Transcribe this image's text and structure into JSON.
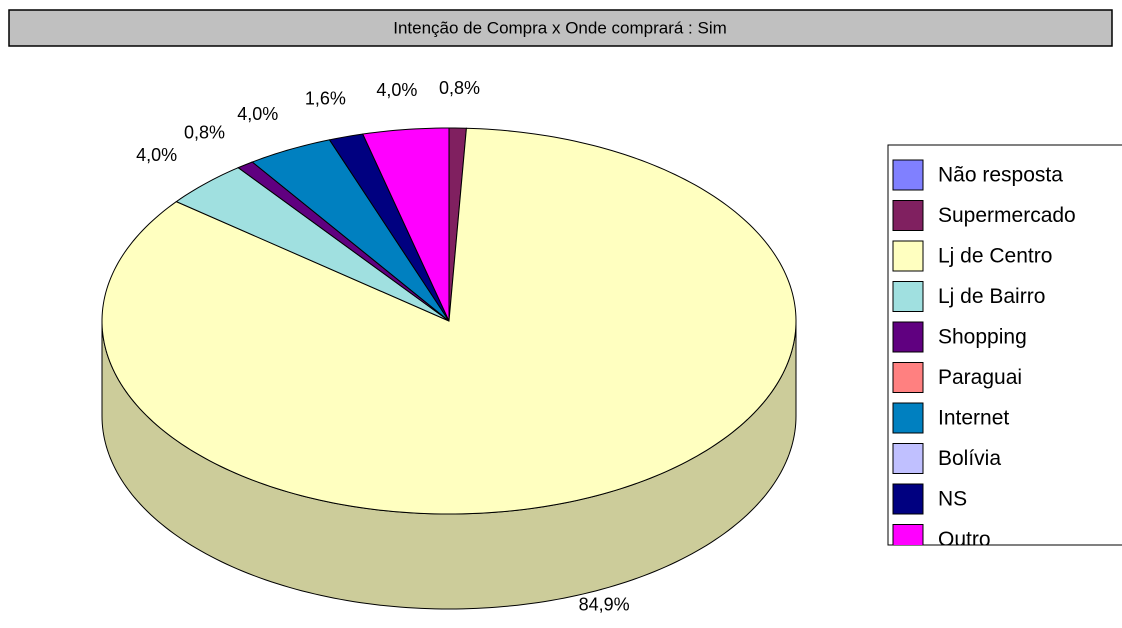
{
  "chart_data": {
    "type": "pie",
    "title": "Intenção de Compra x Onde comprará : Sim",
    "categories": [
      "Não resposta",
      "Supermercado",
      "Lj de Centro",
      "Lj de Bairro",
      "Shopping",
      "Paraguai",
      "Internet",
      "Bolívia",
      "NS",
      "Outro"
    ],
    "values": [
      0,
      0.8,
      84.9,
      4.0,
      0.8,
      0,
      4.0,
      0,
      1.6,
      4.0
    ],
    "value_labels": [
      null,
      "0,8%",
      "84,9%",
      "4,0%",
      "0,8%",
      null,
      "4,0%",
      null,
      "1,6%",
      "4,0%"
    ],
    "colors": [
      "#8080ff",
      "#802060",
      "#ffffc0",
      "#a0e0e0",
      "#600080",
      "#ff8080",
      "#0080c0",
      "#c0c0ff",
      "#000080",
      "#ff00ff"
    ],
    "legend": "right"
  }
}
